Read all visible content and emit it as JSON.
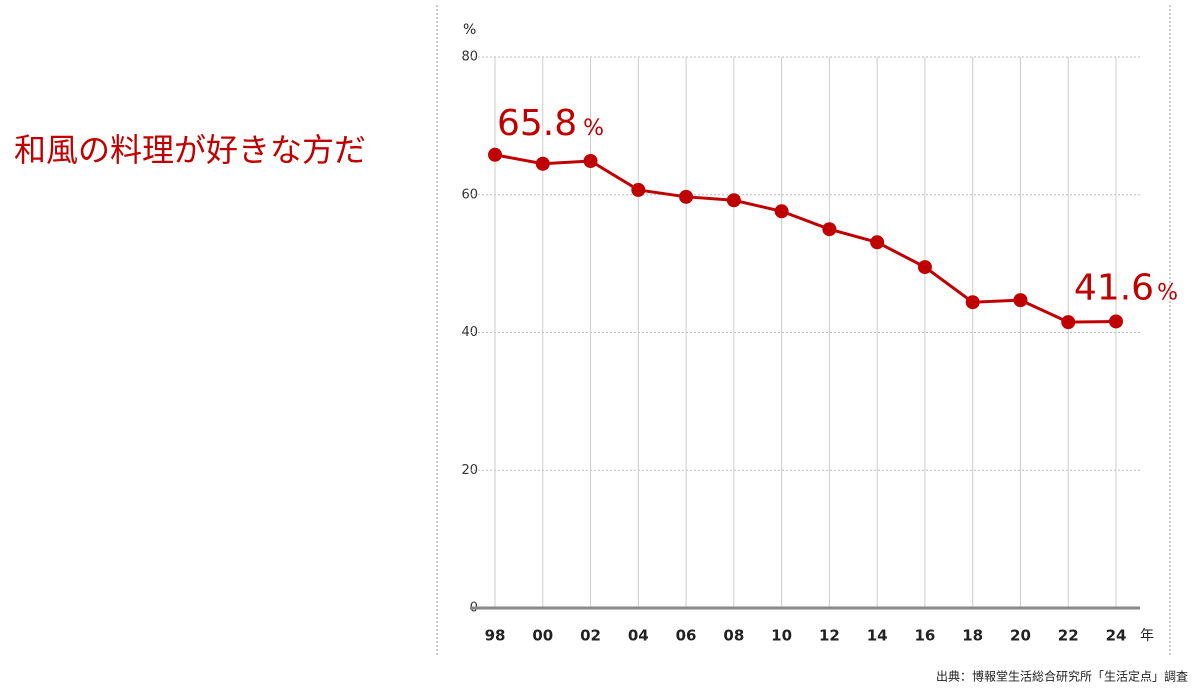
{
  "chart_data": {
    "type": "line",
    "title": "和風の料理が好きな方だ",
    "y_label": "%",
    "x_label": "年",
    "categories": [
      "98",
      "00",
      "02",
      "04",
      "06",
      "08",
      "10",
      "12",
      "14",
      "16",
      "18",
      "20",
      "22",
      "24"
    ],
    "series": [
      {
        "color": "#c00000",
        "values": [
          65.8,
          64.5,
          64.9,
          60.7,
          59.7,
          59.2,
          57.6,
          55.0,
          53.1,
          49.5,
          44.4,
          44.7,
          41.5,
          41.6
        ]
      }
    ],
    "value_labels": [
      "65.8",
      null,
      null,
      null,
      null,
      null,
      null,
      null,
      null,
      null,
      null,
      null,
      null,
      "41.6"
    ],
    "value_label_unit": "%",
    "ylim": [
      0,
      80
    ],
    "yticks": [
      0,
      20,
      40,
      60,
      80
    ],
    "grid": true,
    "source": "出典：博報堂生活総合研究所「生活定点」調査"
  }
}
